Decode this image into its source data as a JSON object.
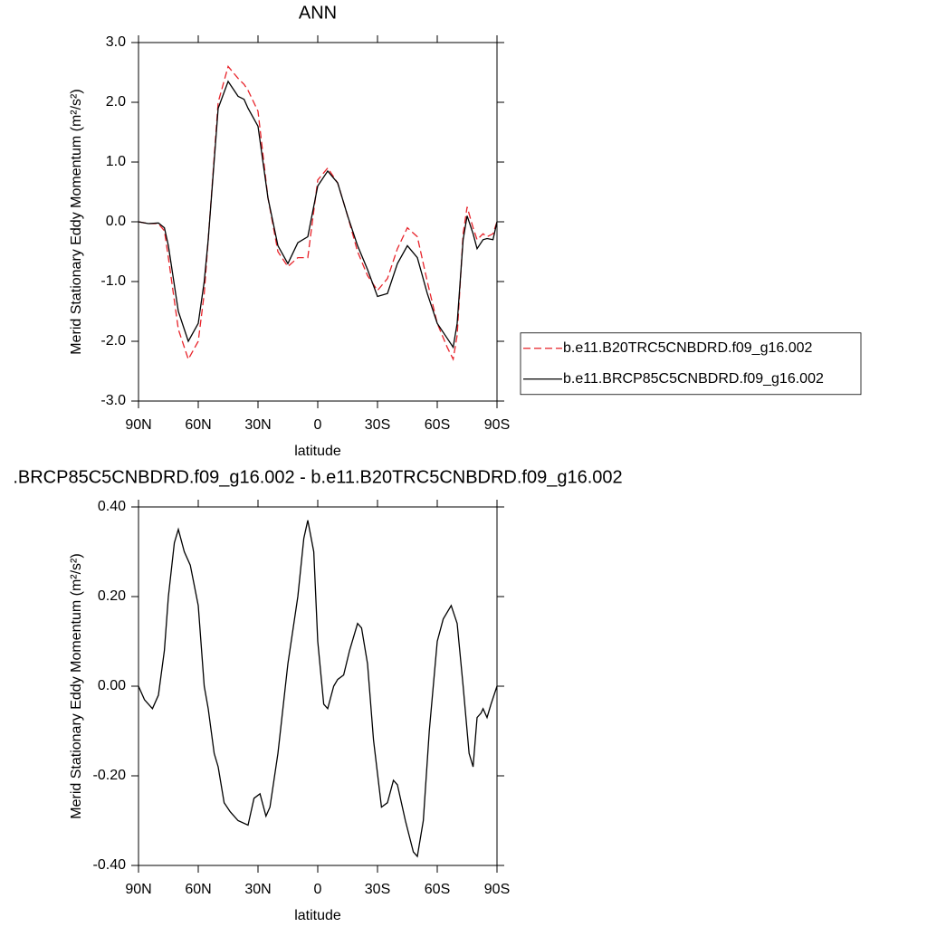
{
  "chart_data": [
    {
      "type": "line",
      "title": "ANN",
      "x_label": "latitude",
      "y_label": "Merid Stationary Eddy Momentum (m²/s²)",
      "x": [
        90,
        85,
        80,
        77,
        75,
        70,
        65,
        60,
        57,
        55,
        50,
        45,
        40,
        37,
        35,
        30,
        25,
        20,
        15,
        10,
        5,
        0,
        -5,
        -10,
        -15,
        -20,
        -25,
        -30,
        -35,
        -40,
        -45,
        -50,
        -55,
        -60,
        -65,
        -68,
        -70,
        -73,
        -75,
        -78,
        -80,
        -83,
        -85,
        -88,
        -90
      ],
      "series": [
        {
          "name": "b.e11.B20TRC5CNBDRD.f09_g16.002",
          "color": "#e8232a",
          "dashed": true,
          "values": [
            0,
            -0.03,
            -0.03,
            -0.15,
            -0.6,
            -1.8,
            -2.3,
            -2.0,
            -1.2,
            -0.3,
            2.0,
            2.6,
            2.4,
            2.3,
            2.2,
            1.85,
            0.4,
            -0.5,
            -0.75,
            -0.6,
            -0.6,
            0.7,
            0.9,
            0.65,
            0.1,
            -0.5,
            -0.9,
            -1.15,
            -0.95,
            -0.45,
            -0.1,
            -0.25,
            -1.0,
            -1.7,
            -2.1,
            -2.3,
            -1.9,
            -0.2,
            0.25,
            -0.1,
            -0.3,
            -0.2,
            -0.25,
            -0.2,
            0
          ]
        },
        {
          "name": "b.e11.BRCP85C5CNBDRD.f09_g16.002",
          "color": "#000000",
          "dashed": false,
          "values": [
            0,
            -0.03,
            -0.02,
            -0.1,
            -0.4,
            -1.5,
            -2.0,
            -1.7,
            -1.0,
            -0.3,
            1.9,
            2.35,
            2.1,
            2.05,
            1.9,
            1.6,
            0.4,
            -0.4,
            -0.7,
            -0.35,
            -0.25,
            0.6,
            0.85,
            0.65,
            0.1,
            -0.4,
            -0.8,
            -1.25,
            -1.2,
            -0.7,
            -0.4,
            -0.6,
            -1.2,
            -1.7,
            -1.95,
            -2.1,
            -1.7,
            -0.3,
            0.1,
            -0.2,
            -0.45,
            -0.3,
            -0.28,
            -0.3,
            0
          ]
        }
      ],
      "xlim": [
        90,
        -90
      ],
      "xticks": [
        {
          "value": 90,
          "label": "90N"
        },
        {
          "value": 60,
          "label": "60N"
        },
        {
          "value": 30,
          "label": "30N"
        },
        0,
        {
          "value": -30,
          "label": "30S"
        },
        {
          "value": -60,
          "label": "60S"
        },
        {
          "value": -90,
          "label": "90S"
        }
      ],
      "ylim": [
        -3,
        3
      ],
      "yticks": [
        {
          "value": -3,
          "label": "-3.0"
        },
        {
          "value": -2,
          "label": "-2.0"
        },
        {
          "value": -1,
          "label": "-1.0"
        },
        {
          "value": 0,
          "label": "0.0"
        },
        {
          "value": 1,
          "label": "1.0"
        },
        {
          "value": 2,
          "label": "2.0"
        },
        {
          "value": 3,
          "label": "3.0"
        }
      ],
      "legend": "right"
    },
    {
      "type": "line",
      "title": ".BRCP85C5CNBDRD.f09_g16.002 - b.e11.B20TRC5CNBDRD.f09_g16.002",
      "x_label": "latitude",
      "y_label": "Merid Stationary Eddy Momentum (m²/s²)",
      "x": [
        90,
        87,
        83,
        80,
        77,
        75,
        72,
        70,
        67,
        64,
        60,
        57,
        55,
        52,
        50,
        47,
        44,
        40,
        35,
        32,
        29,
        26,
        24,
        20,
        15,
        10,
        7,
        5,
        2,
        0,
        -3,
        -5,
        -8,
        -10,
        -13,
        -16,
        -20,
        -22,
        -25,
        -28,
        -32,
        -35,
        -38,
        -40,
        -44,
        -48,
        -50,
        -53,
        -56,
        -60,
        -63,
        -67,
        -70,
        -73,
        -76,
        -78,
        -80,
        -82,
        -83,
        -85,
        -87,
        -90
      ],
      "series": [
        {
          "color": "#000000",
          "dashed": false,
          "values": [
            0,
            -0.03,
            -0.05,
            -0.02,
            0.08,
            0.2,
            0.32,
            0.35,
            0.3,
            0.27,
            0.18,
            0,
            -0.05,
            -0.15,
            -0.18,
            -0.26,
            -0.28,
            -0.3,
            -0.31,
            -0.25,
            -0.24,
            -0.29,
            -0.27,
            -0.15,
            0.05,
            0.2,
            0.33,
            0.37,
            0.3,
            0.1,
            -0.04,
            -0.05,
            0,
            0.015,
            0.025,
            0.08,
            0.14,
            0.13,
            0.05,
            -0.12,
            -0.27,
            -0.26,
            -0.21,
            -0.22,
            -0.3,
            -0.37,
            -0.38,
            -0.3,
            -0.1,
            0.1,
            0.15,
            0.18,
            0.14,
            0,
            -0.15,
            -0.18,
            -0.07,
            -0.06,
            -0.05,
            -0.07,
            -0.04,
            0
          ]
        }
      ],
      "xlim": [
        90,
        -90
      ],
      "xticks": [
        {
          "value": 90,
          "label": "90N"
        },
        {
          "value": 60,
          "label": "60N"
        },
        {
          "value": 30,
          "label": "30N"
        },
        0,
        {
          "value": -30,
          "label": "30S"
        },
        {
          "value": -60,
          "label": "60S"
        },
        {
          "value": -90,
          "label": "90S"
        }
      ],
      "ylim": [
        -0.4,
        0.4
      ],
      "yticks": [
        {
          "value": -0.4,
          "label": "-0.40"
        },
        {
          "value": -0.2,
          "label": "-0.20"
        },
        {
          "value": 0,
          "label": "0.00"
        },
        {
          "value": 0.2,
          "label": "0.20"
        },
        {
          "value": 0.4,
          "label": "0.40"
        }
      ]
    }
  ]
}
